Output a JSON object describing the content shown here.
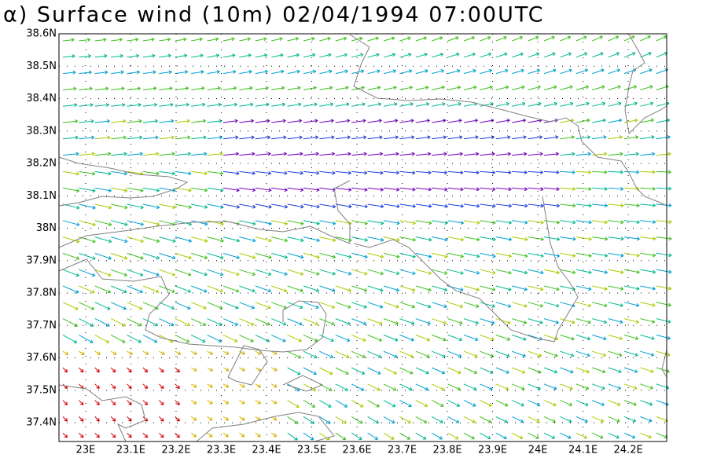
{
  "map": {
    "title": "α) Surface wind (10m) 02/04/1994 07:00UTC",
    "xlim": [
      22.941,
      24.285
    ],
    "ylim": [
      37.342,
      38.6
    ],
    "xticks": [
      {
        "value": 23.0,
        "label": "23E"
      },
      {
        "value": 23.1,
        "label": "23.1E"
      },
      {
        "value": 23.2,
        "label": "23.2E"
      },
      {
        "value": 23.3,
        "label": "23.3E"
      },
      {
        "value": 23.4,
        "label": "23.4E"
      },
      {
        "value": 23.5,
        "label": "23.5E"
      },
      {
        "value": 23.6,
        "label": "23.6E"
      },
      {
        "value": 23.7,
        "label": "23.7E"
      },
      {
        "value": 23.8,
        "label": "23.8E"
      },
      {
        "value": 23.9,
        "label": "23.9E"
      },
      {
        "value": 24.0,
        "label": "24E"
      },
      {
        "value": 24.1,
        "label": "24.1E"
      },
      {
        "value": 24.2,
        "label": "24.2E"
      }
    ],
    "yticks": [
      {
        "value": 37.4,
        "label": "37.4N"
      },
      {
        "value": 37.5,
        "label": "37.5N"
      },
      {
        "value": 37.6,
        "label": "37.6N"
      },
      {
        "value": 37.7,
        "label": "37.7N"
      },
      {
        "value": 37.8,
        "label": "37.8N"
      },
      {
        "value": 37.9,
        "label": "37.9N"
      },
      {
        "value": 38.0,
        "label": "38N"
      },
      {
        "value": 38.1,
        "label": "38.1N"
      },
      {
        "value": 38.2,
        "label": "38.2N"
      },
      {
        "value": 38.3,
        "label": "38.3N"
      },
      {
        "value": 38.4,
        "label": "38.4N"
      },
      {
        "value": 38.5,
        "label": "38.5N"
      },
      {
        "value": 38.6,
        "label": "38.6N"
      }
    ],
    "grid": true
  }
}
